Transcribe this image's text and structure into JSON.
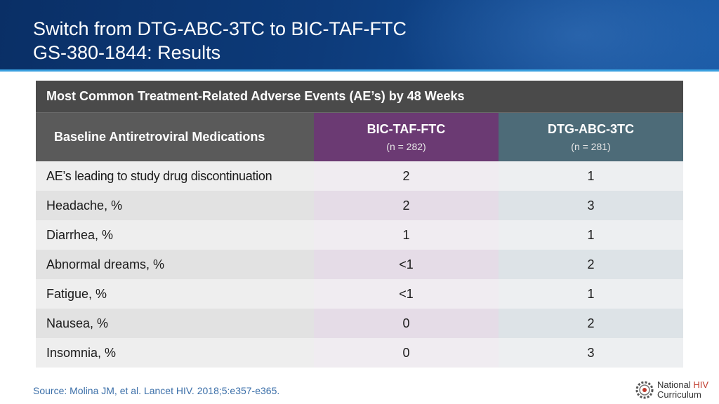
{
  "slide": {
    "title_line1": "Switch from DTG-ABC-3TC to BIC-TAF-FTC",
    "title_line2": "GS-380-1844: Results"
  },
  "table": {
    "caption": "Most Common Treatment-Related Adverse Events (AE’s) by 48 Weeks",
    "header": {
      "col0": "Baseline Antiretroviral Medications",
      "col1_drug": "BIC-TAF-FTC",
      "col1_n": "(n = 282)",
      "col2_drug": "DTG-ABC-3TC",
      "col2_n": "(n = 281)"
    },
    "rows": [
      {
        "label": "AE’s leading to study drug discontinuation",
        "bic": "2",
        "dtg": "1"
      },
      {
        "label": "Headache, %",
        "bic": "2",
        "dtg": "3"
      },
      {
        "label": "Diarrhea, %",
        "bic": "1",
        "dtg": "1"
      },
      {
        "label": "Abnormal dreams, %",
        "bic": "<1",
        "dtg": "2"
      },
      {
        "label": "Fatigue, %",
        "bic": "<1",
        "dtg": "1"
      },
      {
        "label": "Nausea, %",
        "bic": "0",
        "dtg": "2"
      },
      {
        "label": "Insomnia, %",
        "bic": "0",
        "dtg": "3"
      }
    ]
  },
  "footer": {
    "source": "Source: Molina JM, et al. Lancet HIV. 2018;5:e357-e365.",
    "logo_word1": "National",
    "logo_word2": "HIV",
    "logo_word3": "Curriculum"
  },
  "colors": {
    "header_bg": "#0d3b7a",
    "bic_header": "#6b3a73",
    "dtg_header": "#4d6b78",
    "caption_bg": "#4a4a4a"
  }
}
